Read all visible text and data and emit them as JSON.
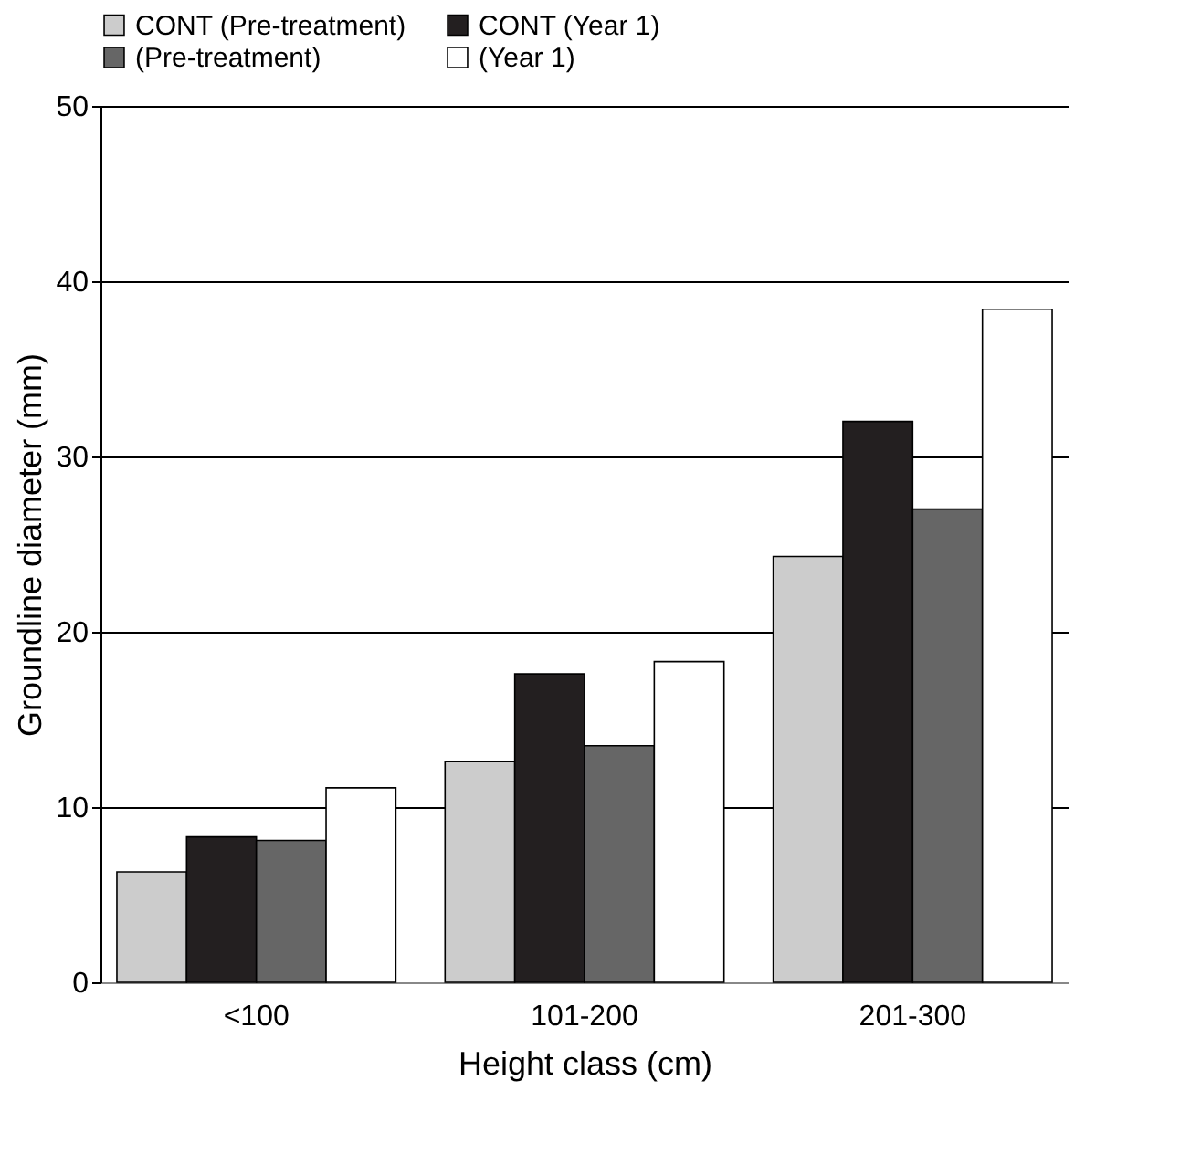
{
  "chart_data": {
    "type": "bar",
    "xlabel": "Height class (cm)",
    "ylabel": "Groundline diameter (mm)",
    "categories": [
      "<100",
      "101-200",
      "201-300"
    ],
    "series": [
      {
        "name": "CONT (Pre-treatment)",
        "color": "#cccccc",
        "values": [
          6.3,
          12.6,
          24.3
        ]
      },
      {
        "name": "CONT (Year 1)",
        "color": "#231f20",
        "values": [
          8.3,
          17.6,
          32.0
        ]
      },
      {
        "name": "(Pre-treatment)",
        "color": "#666666",
        "values": [
          8.1,
          13.5,
          27.0
        ]
      },
      {
        "name": "(Year 1)",
        "color": "#ffffff",
        "values": [
          11.1,
          18.3,
          38.4
        ]
      }
    ],
    "ylim": [
      0,
      50
    ],
    "yticks": [
      0,
      10,
      20,
      30,
      40,
      50
    ],
    "grid": "y",
    "legend": "top"
  }
}
